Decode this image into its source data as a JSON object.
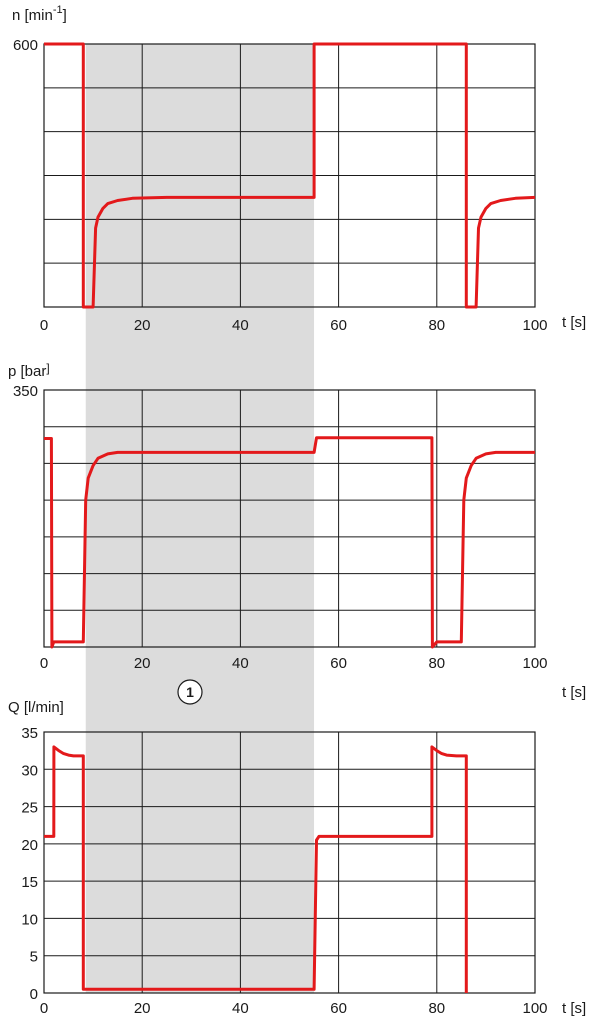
{
  "colors": {
    "series": "#e3191b",
    "shade": "#dcdcdc",
    "grid": "#1a1a1a",
    "text": "#1a1a1a"
  },
  "annotation": {
    "marker_label": "1"
  },
  "shaded_region": {
    "x_from": 8.5,
    "x_to": 55
  },
  "chart_data": [
    {
      "type": "line",
      "ylabel_main": "n [min",
      "ylabel_sup": "-1",
      "ylabel_end": "]",
      "xlabel": "t [s]",
      "xlim": [
        0,
        100
      ],
      "ylim": [
        0,
        600
      ],
      "x_ticks": [
        "0",
        "20",
        "40",
        "60",
        "80",
        "100"
      ],
      "y_ticks": [
        "600"
      ],
      "y_grid_count": 6,
      "series": [
        {
          "x": [
            0,
            8,
            8.01,
            10,
            10.5,
            11,
            12,
            13,
            15,
            18,
            25,
            55,
            55.01,
            86,
            86.01,
            88,
            88.5,
            89,
            90,
            91,
            93,
            96,
            100
          ],
          "y": [
            600,
            600,
            0,
            0,
            180,
            205,
            225,
            236,
            243,
            248,
            250,
            250,
            600,
            600,
            0,
            0,
            180,
            205,
            225,
            236,
            243,
            248,
            250
          ]
        }
      ]
    },
    {
      "type": "line",
      "ylabel_main": "p [bar",
      "ylabel_sup": "",
      "ylabel_end": "]",
      "xlabel": "t [s]",
      "xlim": [
        0,
        100
      ],
      "ylim": [
        0,
        350
      ],
      "x_ticks": [
        "0",
        "20",
        "40",
        "60",
        "80",
        "100"
      ],
      "y_ticks": [
        "350"
      ],
      "y_grid_count": 7,
      "series": [
        {
          "x": [
            0,
            1.5,
            1.6,
            2,
            8,
            8.5,
            9,
            10,
            11,
            13,
            15,
            20,
            55,
            55.5,
            79,
            79.1,
            80,
            85,
            85.5,
            86,
            87,
            88,
            90,
            92,
            95,
            100
          ],
          "y": [
            284,
            284,
            0,
            7,
            7,
            200,
            230,
            247,
            257,
            263,
            265,
            265,
            265,
            285,
            285,
            0,
            7,
            7,
            200,
            230,
            247,
            257,
            263,
            265,
            265,
            265
          ]
        }
      ]
    },
    {
      "type": "line",
      "ylabel_main": "Q [l/min]",
      "ylabel_sup": "",
      "ylabel_end": "",
      "xlabel": "t [s]",
      "xlim": [
        0,
        100
      ],
      "ylim": [
        0,
        35
      ],
      "x_ticks": [
        "0",
        "20",
        "40",
        "60",
        "80",
        "100"
      ],
      "y_ticks": [
        "0",
        "5",
        "10",
        "15",
        "20",
        "25",
        "30",
        "35"
      ],
      "y_grid_count": 7,
      "series": [
        {
          "x": [
            0,
            2,
            2.01,
            3,
            4,
            5,
            6,
            8,
            8.01,
            55,
            55.5,
            56,
            79,
            79.01,
            80,
            81,
            82,
            84,
            86,
            86.01
          ],
          "y": [
            21,
            21,
            33,
            32.5,
            32.1,
            31.9,
            31.8,
            31.8,
            0.5,
            0.5,
            20.5,
            21,
            21,
            33,
            32.5,
            32.1,
            31.9,
            31.8,
            31.8,
            0
          ]
        }
      ]
    }
  ]
}
